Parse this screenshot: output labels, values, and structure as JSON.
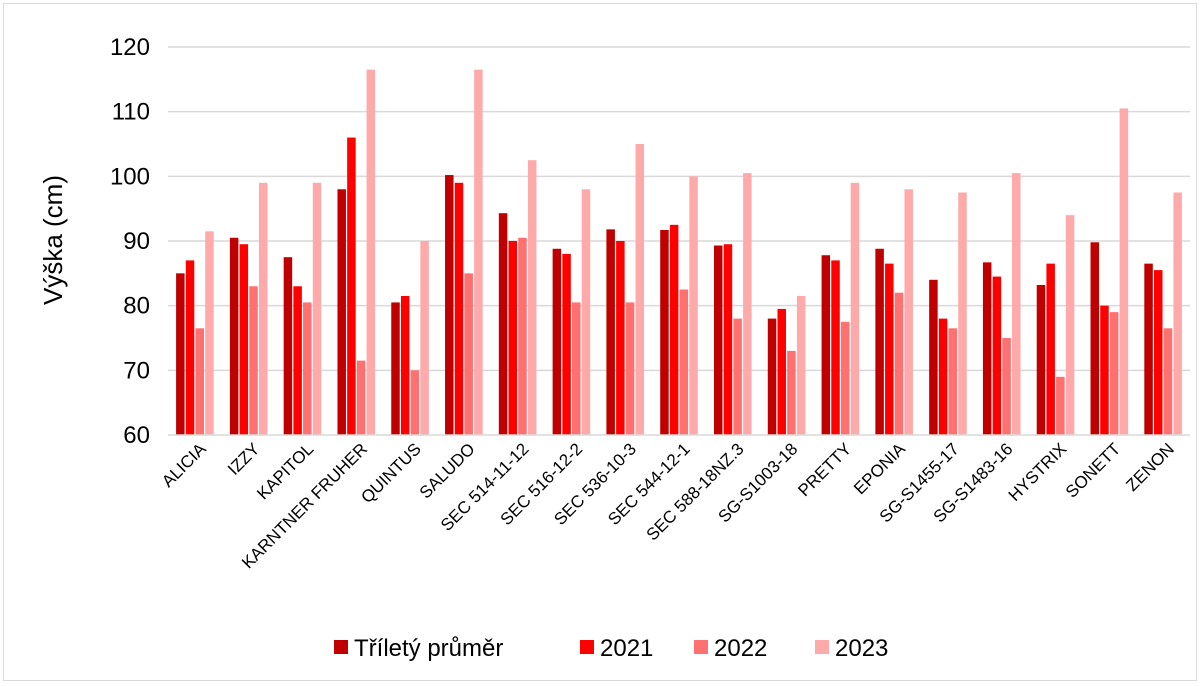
{
  "chart_data": {
    "type": "bar",
    "xlabel": "",
    "ylabel": "Výška (cm)",
    "ylim": [
      60,
      120
    ],
    "yticks": [
      60,
      70,
      80,
      90,
      100,
      110,
      120
    ],
    "grid": true,
    "legend_position": "bottom",
    "categories": [
      "ALICIA",
      "IZZY",
      "KAPITOL",
      "KARNTNER FRUHER",
      "QUINTUS",
      "SALUDO",
      "SEC 514-11-12",
      "SEC 516-12-2",
      "SEC 536-10-3",
      "SEC 544-12-1",
      "SEC 588-18NZ.3",
      "SG-S1003-18",
      "PRETTY",
      "EPONIA",
      "SG-S1455-17",
      "SG-S1483-16",
      "HYSTRIX",
      "SONETT",
      "ZENON"
    ],
    "series": [
      {
        "name": "Tříletý průměr",
        "color": "#c00000",
        "values": [
          85,
          90.5,
          87.5,
          98,
          80.5,
          100.2,
          94.3,
          88.8,
          91.8,
          91.7,
          89.3,
          78,
          87.8,
          88.8,
          84,
          86.7,
          83.2,
          89.8,
          86.5
        ]
      },
      {
        "name": "2021",
        "color": "#ff0000",
        "values": [
          87,
          89.5,
          83,
          106,
          81.5,
          99,
          90,
          88,
          90,
          92.5,
          89.5,
          79.5,
          87,
          86.5,
          78,
          84.5,
          86.5,
          80,
          85.5
        ]
      },
      {
        "name": "2022",
        "color": "#ff7070",
        "values": [
          76.5,
          83,
          80.5,
          71.5,
          70,
          85,
          90.5,
          80.5,
          80.5,
          82.5,
          78,
          73,
          77.5,
          82,
          76.5,
          75,
          69,
          79,
          76.5
        ]
      },
      {
        "name": "2023",
        "color": "#ffaaaa",
        "values": [
          91.5,
          99,
          99,
          116.5,
          90,
          116.5,
          102.5,
          98,
          105,
          100,
          100.5,
          81.5,
          99,
          98,
          97.5,
          100.5,
          94,
          110.5,
          97.5
        ]
      }
    ]
  }
}
